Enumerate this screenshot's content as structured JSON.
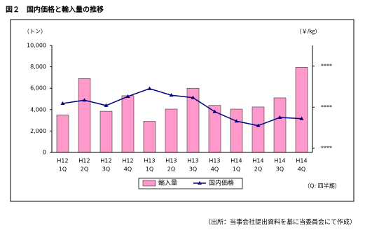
{
  "chart_data": {
    "type": "bar",
    "title": "図２　国内価格と輸入量の推移",
    "y_label": "（トン）",
    "y2_label": "（￥/㎏）",
    "note": "（Q: 四半期）",
    "source": "（出所：当事会社提出資料を基に当委員会にて作成）",
    "categories": [
      [
        "H12",
        "1Q"
      ],
      [
        "H12",
        "2Q"
      ],
      [
        "H12",
        "3Q"
      ],
      [
        "H12",
        "4Q"
      ],
      [
        "H13",
        "1Q"
      ],
      [
        "H13",
        "2Q"
      ],
      [
        "H13",
        "3Q"
      ],
      [
        "H13",
        "4Q"
      ],
      [
        "H14",
        "1Q"
      ],
      [
        "H14",
        "2Q"
      ],
      [
        "H14",
        "3Q"
      ],
      [
        "H14",
        "4Q"
      ]
    ],
    "series": [
      {
        "name": "輸入量",
        "type": "bar",
        "color": "#ff99cc",
        "values": [
          3500,
          6900,
          3850,
          5300,
          2900,
          4050,
          6000,
          4400,
          4050,
          4250,
          5100,
          7950
        ]
      },
      {
        "name": "国内価格",
        "type": "line",
        "axis": "y2",
        "color": "#000080",
        "values": [
          209,
          217,
          204,
          226,
          245,
          229,
          223,
          189,
          166,
          155,
          175,
          172
        ]
      }
    ],
    "ylim": [
      0,
      10000
    ],
    "yticks": [
      0,
      {
        "value": 2000,
        "label": "2,000"
      },
      {
        "value": 4000,
        "label": "4,000"
      },
      {
        "value": 6000,
        "label": "6,000"
      },
      {
        "value": 8000,
        "label": "8,000"
      },
      {
        "value": 10000,
        "label": "10,000"
      }
    ],
    "y2lim": [
      90,
      350
    ],
    "y2ticks": [
      {
        "value": 100,
        "label": "****"
      },
      {
        "value": 200,
        "label": "****"
      },
      {
        "value": 300,
        "label": "****"
      }
    ],
    "legend": "bottom"
  }
}
